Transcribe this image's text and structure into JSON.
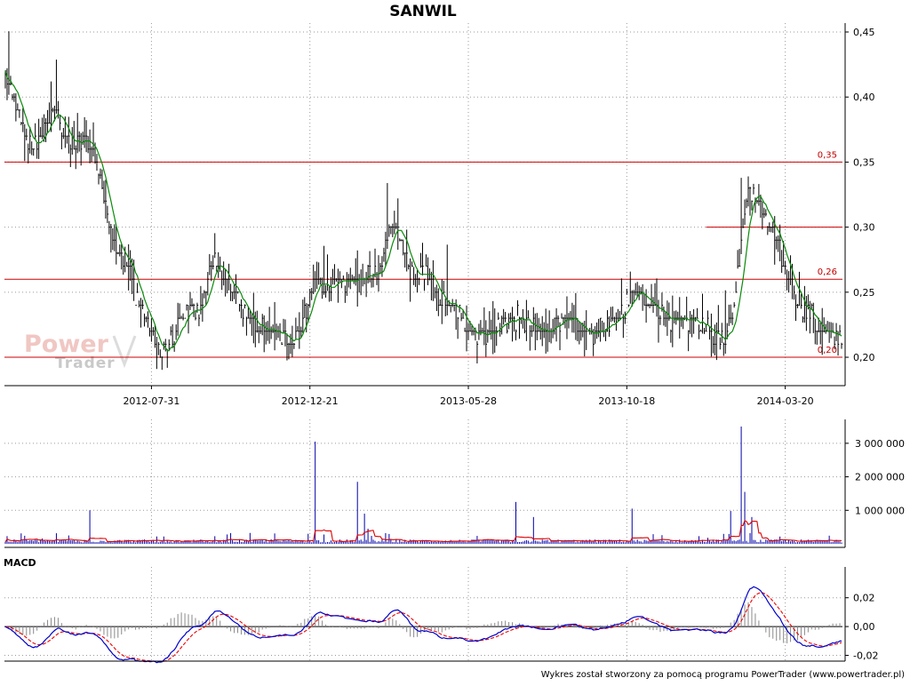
{
  "chart_data": [
    {
      "type": "bar",
      "panel": "price",
      "title": "SANWIL",
      "style": "ohlc",
      "x_dates": [
        "2012-07-31",
        "2012-12-21",
        "2013-05-28",
        "2013-10-18",
        "2014-03-20"
      ],
      "ylim": [
        0.185,
        0.45
      ],
      "y_ticks": [
        "0,45",
        "0,40",
        "0,35",
        "0,30",
        "0,25",
        "0,20"
      ],
      "grid": true,
      "series": [
        {
          "name": "price",
          "color": "#000000",
          "anchors": [
            [
              0,
              0.42
            ],
            [
              6,
              0.39
            ],
            [
              12,
              0.37
            ],
            [
              18,
              0.36
            ],
            [
              22,
              0.38
            ],
            [
              28,
              0.39
            ],
            [
              34,
              0.37
            ],
            [
              40,
              0.36
            ],
            [
              46,
              0.37
            ],
            [
              52,
              0.35
            ],
            [
              58,
              0.31
            ],
            [
              64,
              0.28
            ],
            [
              70,
              0.27
            ],
            [
              76,
              0.24
            ],
            [
              82,
              0.22
            ],
            [
              88,
              0.2
            ],
            [
              94,
              0.21
            ],
            [
              100,
              0.23
            ],
            [
              106,
              0.24
            ],
            [
              110,
              0.23
            ],
            [
              116,
              0.27
            ],
            [
              122,
              0.27
            ],
            [
              128,
              0.25
            ],
            [
              134,
              0.24
            ],
            [
              140,
              0.23
            ],
            [
              146,
              0.22
            ],
            [
              152,
              0.22
            ],
            [
              158,
              0.22
            ],
            [
              164,
              0.21
            ],
            [
              170,
              0.23
            ],
            [
              176,
              0.26
            ],
            [
              182,
              0.25
            ],
            [
              190,
              0.26
            ],
            [
              200,
              0.26
            ],
            [
              208,
              0.26
            ],
            [
              214,
              0.27
            ],
            [
              218,
              0.3
            ],
            [
              222,
              0.3
            ],
            [
              226,
              0.28
            ],
            [
              232,
              0.26
            ],
            [
              238,
              0.27
            ],
            [
              244,
              0.25
            ],
            [
              250,
              0.24
            ],
            [
              256,
              0.24
            ],
            [
              262,
              0.22
            ],
            [
              270,
              0.22
            ],
            [
              278,
              0.22
            ],
            [
              286,
              0.23
            ],
            [
              294,
              0.23
            ],
            [
              300,
              0.22
            ],
            [
              308,
              0.22
            ],
            [
              316,
              0.23
            ],
            [
              324,
              0.22
            ],
            [
              332,
              0.22
            ],
            [
              340,
              0.22
            ],
            [
              348,
              0.23
            ],
            [
              356,
              0.25
            ],
            [
              362,
              0.25
            ],
            [
              368,
              0.24
            ],
            [
              376,
              0.23
            ],
            [
              384,
              0.23
            ],
            [
              392,
              0.23
            ],
            [
              400,
              0.22
            ],
            [
              408,
              0.21
            ],
            [
              414,
              0.24
            ],
            [
              418,
              0.29
            ],
            [
              422,
              0.33
            ],
            [
              428,
              0.32
            ],
            [
              434,
              0.3
            ],
            [
              440,
              0.28
            ],
            [
              446,
              0.26
            ],
            [
              452,
              0.24
            ],
            [
              458,
              0.23
            ],
            [
              464,
              0.22
            ],
            [
              470,
              0.215
            ],
            [
              475,
              0.215
            ]
          ]
        },
        {
          "name": "sma",
          "color": "#0a8a0a"
        }
      ],
      "levels": [
        {
          "value": 0.35,
          "label": "0,35"
        },
        {
          "value": 0.3,
          "label": ""
        },
        {
          "value": 0.26,
          "label": "0,26"
        },
        {
          "value": 0.2,
          "label": "0,20"
        }
      ],
      "level_color": "#cc0000",
      "watermark": [
        "Power",
        "Trader"
      ]
    },
    {
      "type": "bar",
      "panel": "volume",
      "ylim": [
        0,
        3500000
      ],
      "y_ticks": [
        "3 000 000",
        "2 000 000",
        "1 000 000"
      ],
      "grid": true,
      "series": [
        {
          "name": "volume",
          "color": "#0000aa",
          "spikes": [
            [
              1,
              230000
            ],
            [
              36,
              250000
            ],
            [
              48,
              1000000
            ],
            [
              86,
              220000
            ],
            [
              126,
              280000
            ],
            [
              172,
              300000
            ],
            [
              176,
              3050000
            ],
            [
              200,
              1850000
            ],
            [
              204,
              900000
            ],
            [
              206,
              450000
            ],
            [
              290,
              1250000
            ],
            [
              300,
              800000
            ],
            [
              356,
              1050000
            ],
            [
              412,
              980000
            ],
            [
              418,
              3500000
            ],
            [
              420,
              1550000
            ],
            [
              424,
              800000
            ]
          ]
        },
        {
          "name": "volume_avg",
          "color": "#e00000"
        }
      ]
    },
    {
      "type": "line",
      "panel": "macd",
      "title": "MACD",
      "ylim": [
        -0.024,
        0.034
      ],
      "y_ticks": [
        "0,02",
        "0,00",
        "-0,02"
      ],
      "grid": true,
      "series": [
        {
          "name": "macd",
          "color": "#0000cc"
        },
        {
          "name": "signal",
          "color": "#ee0000"
        },
        {
          "name": "histogram",
          "color": "#8a8a8a"
        }
      ]
    }
  ],
  "footer": "Wykres został stworzony za pomocą programu PowerTrader (www.powertrader.pl)"
}
